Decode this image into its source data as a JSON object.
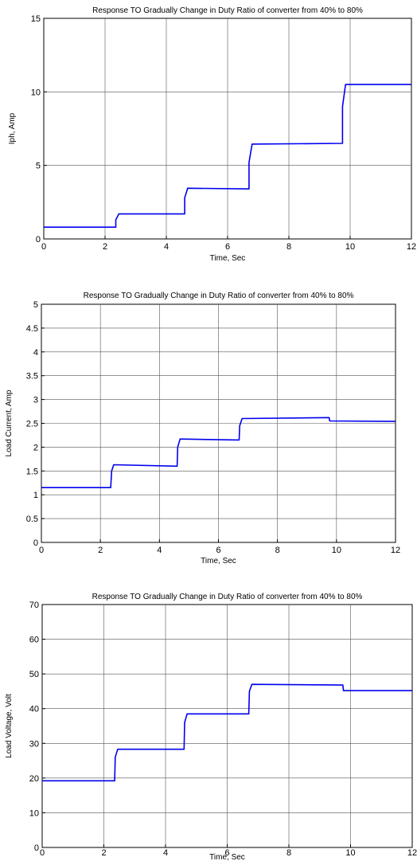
{
  "colors": {
    "line": "#0000ee",
    "grid": "#000000",
    "background": "#ffffff"
  },
  "chart_data": [
    {
      "type": "line",
      "title": "Response TO Gradually Change in Duty Ratio of converter from 40%  to  80%",
      "xlabel": "Time, Sec",
      "ylabel": "Iph, Amp",
      "xlim": [
        0,
        12
      ],
      "ylim": [
        0,
        15
      ],
      "xticks": [
        "0",
        "2",
        "4",
        "6",
        "8",
        "10",
        "12"
      ],
      "yticks": [
        "0",
        "5",
        "10",
        "15"
      ],
      "grid": true,
      "series": [
        {
          "x": [
            0,
            2.35,
            2.35,
            2.45,
            4.6,
            4.6,
            4.7,
            6.7,
            6.7,
            6.8,
            9.75,
            9.75,
            9.85,
            12
          ],
          "y": [
            0.8,
            0.8,
            1.3,
            1.7,
            1.7,
            2.8,
            3.45,
            3.4,
            5.2,
            6.45,
            6.5,
            9.0,
            10.5,
            10.5
          ]
        }
      ]
    },
    {
      "type": "line",
      "title": "Response TO Gradually Change in Duty Ratio of converter from 40%  to  80%",
      "xlabel": "Time, Sec",
      "ylabel": "Load Current, Amp",
      "xlim": [
        0,
        12
      ],
      "ylim": [
        0,
        5
      ],
      "xticks": [
        "0",
        "2",
        "4",
        "6",
        "8",
        "10",
        "12"
      ],
      "yticks": [
        "0",
        "0.5",
        "1",
        "1.5",
        "2",
        "2.5",
        "3",
        "3.5",
        "4",
        "4.5",
        "5"
      ],
      "grid": true,
      "series": [
        {
          "x": [
            0,
            2.35,
            2.38,
            2.45,
            4.6,
            4.62,
            4.7,
            6.7,
            6.72,
            6.8,
            9.75,
            9.77,
            12
          ],
          "y": [
            1.15,
            1.15,
            1.5,
            1.63,
            1.6,
            2.0,
            2.17,
            2.15,
            2.45,
            2.6,
            2.62,
            2.55,
            2.54
          ]
        }
      ]
    },
    {
      "type": "line",
      "title": "Response TO Gradually Change in Duty Ratio of converter from 40%  to  80%",
      "xlabel": "Time, Sec",
      "ylabel": "Load Voltage, Volt",
      "xlim": [
        0,
        12
      ],
      "ylim": [
        0,
        70
      ],
      "xticks": [
        "0",
        "2",
        "4",
        "6",
        "8",
        "10",
        "12"
      ],
      "yticks": [
        "0",
        "10",
        "20",
        "30",
        "40",
        "50",
        "60",
        "70"
      ],
      "grid": true,
      "series": [
        {
          "x": [
            0,
            2.35,
            2.37,
            2.45,
            4.6,
            4.62,
            4.7,
            6.7,
            6.72,
            6.8,
            9.75,
            9.77,
            12
          ],
          "y": [
            19.2,
            19.2,
            26,
            28.3,
            28.3,
            36,
            38.5,
            38.5,
            45,
            47,
            46.8,
            45.2,
            45.2
          ]
        }
      ]
    }
  ]
}
